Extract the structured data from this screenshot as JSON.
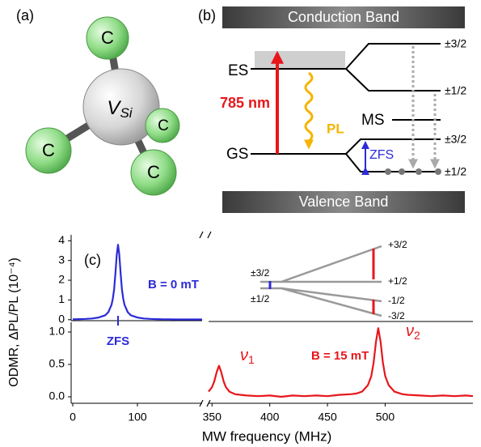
{
  "panel_a": {
    "label": "(a)",
    "vacancy": {
      "symbol": "V",
      "subscript": "Si"
    },
    "atoms": [
      "C",
      "C",
      "C",
      "C"
    ]
  },
  "panel_b": {
    "label": "(b)",
    "conduction_band": "Conduction Band",
    "valence_band": "Valence Band",
    "levels": {
      "es": "ES",
      "gs": "GS",
      "ms": "MS"
    },
    "spin_labels": [
      "±3/2",
      "±1/2",
      "±3/2",
      "±1/2"
    ],
    "excitation": "785 nm",
    "emission": "PL",
    "zfs": "ZFS"
  },
  "panel_c": {
    "label": "(c)",
    "y_label": "ODMR, ΔPL/PL (10⁻⁴)",
    "x_label": "MW frequency (MHz)",
    "field_zero": "B = 0 mT",
    "field_on": "B = 15 mT",
    "nu1": {
      "symbol": "ν",
      "subscript": "1"
    },
    "nu2": {
      "symbol": "ν",
      "subscript": "2"
    },
    "inset": {
      "zero_field_levels": [
        "±3/2",
        "±1/2"
      ],
      "split_levels": [
        "+3/2",
        "+1/2",
        "-1/2",
        "-3/2"
      ]
    }
  },
  "chart_data": [
    {
      "type": "line",
      "color": "#2b2bd9",
      "xlim": [
        -2.5,
        200
      ],
      "ylim": [
        -0.05,
        4.3
      ],
      "yticks": [
        0,
        1,
        2,
        3,
        4
      ],
      "x": [
        0,
        10,
        20,
        30,
        40,
        50,
        55,
        60,
        62,
        64,
        66,
        68,
        70,
        72,
        74,
        76,
        78,
        80,
        85,
        90,
        100,
        110,
        120,
        130,
        140,
        150,
        160,
        170,
        180,
        190,
        200
      ],
      "values": [
        0.02,
        0.03,
        0.04,
        0.06,
        0.11,
        0.22,
        0.38,
        0.76,
        1.07,
        1.55,
        2.36,
        3.28,
        3.8,
        3.28,
        2.36,
        1.55,
        1.07,
        0.76,
        0.38,
        0.22,
        0.11,
        0.06,
        0.04,
        0.03,
        0.02,
        0.02,
        0.01,
        0.01,
        0.01,
        0.01,
        0.01
      ],
      "markers": [
        {
          "x": 70,
          "label": "ZFS"
        }
      ]
    },
    {
      "type": "line",
      "xlim": [
        -2.5,
        200
      ],
      "ylim": [
        -0.1,
        1.15
      ],
      "xticks": [
        0,
        100
      ],
      "yticks": [
        {
          "value": 0,
          "label": "0.0"
        },
        {
          "value": 0.5,
          "label": "0.5"
        },
        {
          "value": 1,
          "label": "1.0"
        }
      ]
    },
    {
      "type": "line",
      "color": "#e8161b",
      "xlim": [
        347,
        576
      ],
      "ylim": [
        -0.1,
        1.15
      ],
      "xticks": [
        350,
        400,
        450,
        500
      ],
      "x": [
        347,
        350,
        352,
        354,
        356,
        358,
        360,
        362,
        365,
        370,
        375,
        380,
        390,
        400,
        410,
        420,
        430,
        440,
        450,
        460,
        470,
        475,
        480,
        485,
        488,
        490,
        492,
        494,
        496,
        498,
        500,
        503,
        508,
        515,
        520,
        530,
        540,
        550,
        560,
        570,
        576
      ],
      "values": [
        0.08,
        0.15,
        0.24,
        0.38,
        0.48,
        0.38,
        0.24,
        0.15,
        0.08,
        0.04,
        0.03,
        0.02,
        0.01,
        0.02,
        0,
        0.02,
        0.01,
        0.02,
        0.01,
        0.03,
        0.04,
        0.05,
        0.08,
        0.18,
        0.32,
        0.53,
        0.85,
        1.06,
        0.85,
        0.53,
        0.32,
        0.18,
        0.08,
        0.04,
        0.03,
        0.02,
        0.01,
        0.02,
        0.01,
        0.02,
        0.01
      ]
    }
  ]
}
